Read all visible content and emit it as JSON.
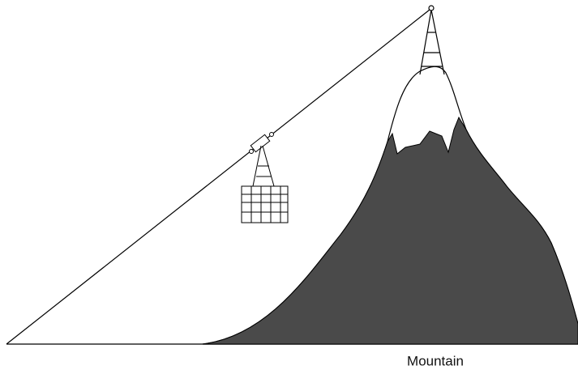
{
  "diagram": {
    "label": "Mountain"
  }
}
